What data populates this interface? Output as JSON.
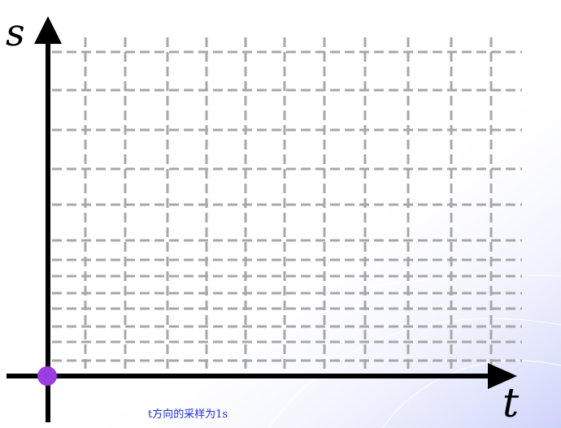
{
  "axes": {
    "y_label": "s",
    "x_label": "t"
  },
  "caption": "t方向的采样为1s",
  "origin_marker": {
    "color": "#9b3de0"
  },
  "colors": {
    "axis": "#000000",
    "grid": "#a8a8a8",
    "caption": "#1a2fd6",
    "background_wash": "#c8cef8"
  },
  "grid": {
    "style": "dashed",
    "vertical_line_count": 12,
    "horizontal_line_count": 16
  }
}
